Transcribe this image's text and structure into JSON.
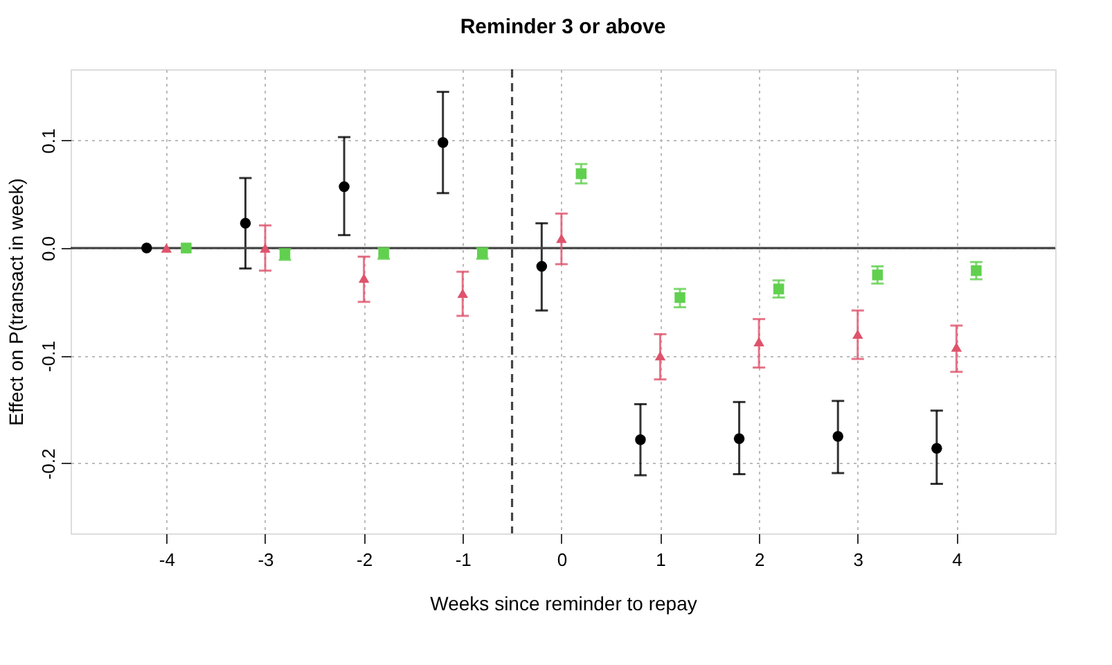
{
  "chart_data": {
    "type": "scatter",
    "title": "Reminder 3 or above",
    "xlabel": "Weeks since reminder to repay",
    "ylabel": "Effect on P(transact in week)",
    "xlim": [
      -4.97,
      5.0
    ],
    "xticks": [
      -4,
      -3,
      -2,
      -1,
      0,
      1,
      2,
      3,
      4
    ],
    "ylim": [
      -0.265,
      0.166
    ],
    "yticks": [
      -0.2,
      -0.1,
      {
        "value": 0,
        "label": "0.0"
      },
      0.1
    ],
    "grid": true,
    "series": [
      {
        "color": "#000000",
        "marker": "circle",
        "x": [
          -4.2,
          -3.2,
          -2.2,
          -1.2,
          -0.2,
          0.8,
          1.8,
          2.8,
          3.8
        ],
        "values": [
          0.0,
          0.023,
          0.057,
          0.098,
          -0.017,
          -0.178,
          -0.177,
          -0.175,
          -0.186
        ],
        "errors": [
          null,
          [
            -0.019,
            0.065
          ],
          [
            0.012,
            0.103
          ],
          [
            0.051,
            0.145
          ],
          [
            -0.058,
            0.023
          ],
          [
            -0.211,
            -0.145
          ],
          [
            -0.21,
            -0.143
          ],
          [
            -0.209,
            -0.142
          ],
          [
            -0.219,
            -0.151
          ]
        ]
      },
      {
        "color": "#df536b",
        "marker": "triangle",
        "x": [
          -4,
          -3,
          -2,
          -1,
          0,
          1,
          2,
          3,
          4
        ],
        "values": [
          0.0,
          0.0,
          -0.028,
          -0.042,
          0.009,
          -0.1,
          -0.087,
          -0.08,
          -0.092
        ],
        "errors": [
          null,
          [
            -0.021,
            0.021
          ],
          [
            -0.05,
            -0.008
          ],
          [
            -0.063,
            -0.022
          ],
          [
            -0.015,
            0.032
          ],
          [
            -0.122,
            -0.08
          ],
          [
            -0.111,
            -0.066
          ],
          [
            -0.103,
            -0.058
          ],
          [
            -0.115,
            -0.072
          ]
        ]
      },
      {
        "color": "#61d04f",
        "marker": "square",
        "x": [
          -3.8,
          -2.8,
          -1.8,
          -0.8,
          0.2,
          1.2,
          2.2,
          3.2,
          4.2
        ],
        "values": [
          0.0,
          -0.006,
          -0.005,
          -0.005,
          0.069,
          -0.046,
          -0.038,
          -0.025,
          -0.021
        ],
        "errors": [
          null,
          [
            -0.011,
            -0.001
          ],
          [
            -0.01,
            0.0
          ],
          [
            -0.01,
            0.0
          ],
          [
            0.06,
            0.078
          ],
          [
            -0.055,
            -0.038
          ],
          [
            -0.046,
            -0.03
          ],
          [
            -0.033,
            -0.017
          ],
          [
            -0.029,
            -0.013
          ]
        ]
      }
    ],
    "ref_lines": [
      {
        "axis": "y",
        "value": 0,
        "color": "#444444",
        "line_style": "solid"
      },
      {
        "axis": "x",
        "value": -0.5,
        "color": "#444444",
        "line_style": "dashed"
      }
    ]
  }
}
